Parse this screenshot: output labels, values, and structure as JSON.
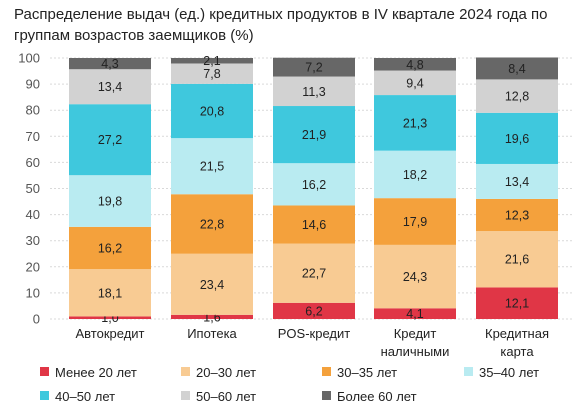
{
  "title": "Распределение выдач (ед.) кредитных продуктов в IV квартале 2024 года по группам возрастов заемщиков (%)",
  "chart_data": {
    "type": "bar",
    "stacked": true,
    "title": "Распределение выдач (ед.) кредитных продуктов в IV квартале 2024 года по группам возрастов заемщиков (%)",
    "categories": [
      [
        "Автокредит"
      ],
      [
        "Ипотека"
      ],
      [
        "POS-кредит"
      ],
      [
        "Кредит",
        "наличными"
      ],
      [
        "Кредитная",
        "карта"
      ]
    ],
    "ylim": [
      0,
      100
    ],
    "yticks": [
      0,
      10,
      20,
      30,
      40,
      50,
      60,
      70,
      80,
      90,
      100
    ],
    "grid": true,
    "legend_position": "bottom",
    "series": [
      {
        "name": "Менее 20 лет",
        "color": "#e03646",
        "values": [
          1.0,
          1.6,
          6.2,
          4.1,
          12.1
        ],
        "labels": [
          "1,0",
          "1,6",
          "6,2",
          "4,1",
          "12,1"
        ]
      },
      {
        "name": "20–30 лет",
        "color": "#f8cb93",
        "values": [
          18.1,
          23.4,
          22.7,
          24.3,
          21.6
        ],
        "labels": [
          "18,1",
          "23,4",
          "22,7",
          "24,3",
          "21,6"
        ]
      },
      {
        "name": "30–35 лет",
        "color": "#f4a13c",
        "values": [
          16.2,
          22.8,
          14.6,
          17.9,
          12.3
        ],
        "labels": [
          "16,2",
          "22,8",
          "14,6",
          "17,9",
          "12,3"
        ]
      },
      {
        "name": "35–40 лет",
        "color": "#b9ebf1",
        "values": [
          19.8,
          21.5,
          16.2,
          18.2,
          13.4
        ],
        "labels": [
          "19,8",
          "21,5",
          "16,2",
          "18,2",
          "13,4"
        ]
      },
      {
        "name": "40–50 лет",
        "color": "#3fc8dd",
        "values": [
          27.2,
          20.8,
          21.9,
          21.3,
          19.6
        ],
        "labels": [
          "27,2",
          "20,8",
          "21,9",
          "21,3",
          "19,6"
        ]
      },
      {
        "name": "50–60 лет",
        "color": "#d2d2d2",
        "values": [
          13.4,
          7.8,
          11.3,
          9.4,
          12.8
        ],
        "labels": [
          "13,4",
          "7,8",
          "11,3",
          "9,4",
          "12,8"
        ]
      },
      {
        "name": "Более 60 лет",
        "color": "#676767",
        "values": [
          4.3,
          2.1,
          7.2,
          4.8,
          8.4
        ],
        "labels": [
          "4,3",
          "2,1",
          "7,2",
          "4,8",
          "8,4"
        ]
      }
    ]
  }
}
